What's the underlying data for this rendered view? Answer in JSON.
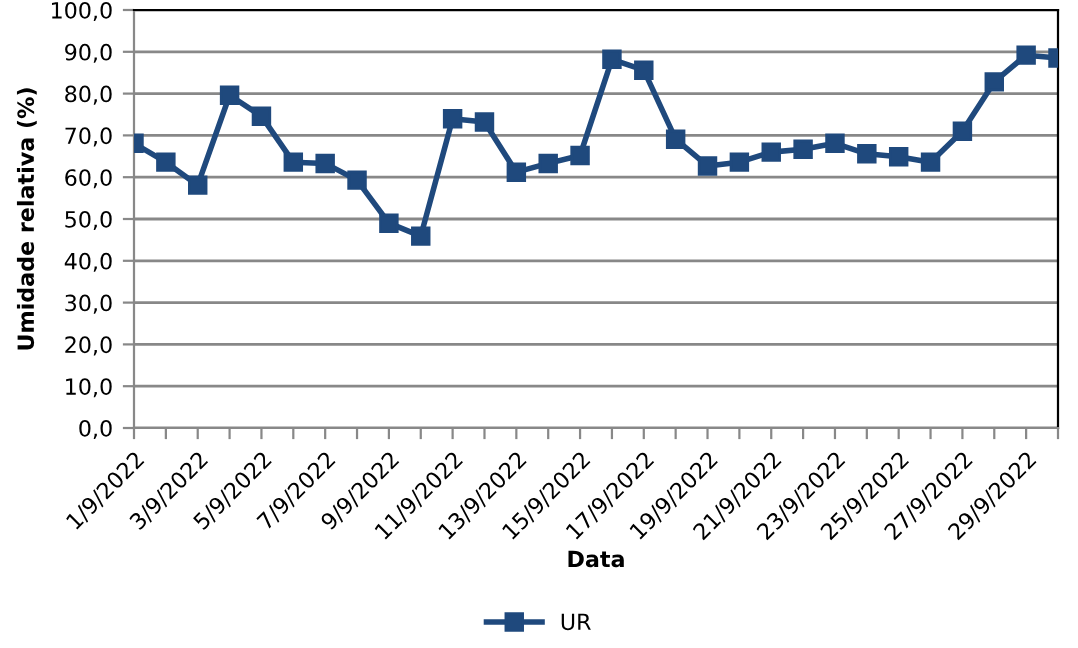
{
  "chart_data": {
    "type": "line",
    "xlabel": "Data",
    "ylabel": "Umidade relativa (%)",
    "categories": [
      "1/9/2022",
      null,
      "3/9/2022",
      null,
      "5/9/2022",
      null,
      "7/9/2022",
      null,
      "9/9/2022",
      null,
      "11/9/2022",
      null,
      "13/9/2022",
      null,
      "15/9/2022",
      null,
      "17/9/2022",
      null,
      "19/9/2022",
      null,
      "21/9/2022",
      null,
      "23/9/2022",
      null,
      "25/9/2022",
      null,
      "27/9/2022",
      null,
      "29/9/2022",
      null
    ],
    "series": [
      {
        "name": "UR",
        "color": "#1f497d",
        "values": [
          68.1,
          63.6,
          58.1,
          79.6,
          74.6,
          63.6,
          63.3,
          59.3,
          49.0,
          45.9,
          74.0,
          73.2,
          61.2,
          63.3,
          65.2,
          88.2,
          85.6,
          69.1,
          62.7,
          63.6,
          66.0,
          66.7,
          68.1,
          65.6,
          64.9,
          63.6,
          71.0,
          82.8,
          89.2,
          88.5
        ]
      }
    ],
    "ylim": [
      0,
      100
    ],
    "yticks": [
      {
        "value": 0,
        "label": "0,0"
      },
      {
        "value": 10,
        "label": "10,0"
      },
      {
        "value": 20,
        "label": "20,0"
      },
      {
        "value": 30,
        "label": "30,0"
      },
      {
        "value": 40,
        "label": "40,0"
      },
      {
        "value": 50,
        "label": "50,0"
      },
      {
        "value": 60,
        "label": "60,0"
      },
      {
        "value": 70,
        "label": "70,0"
      },
      {
        "value": 80,
        "label": "80,0"
      },
      {
        "value": 90,
        "label": "90,0"
      },
      {
        "value": 100,
        "label": "100,0"
      }
    ],
    "grid": "y",
    "legend": "bottom",
    "marker": "square",
    "line_style": "solid"
  }
}
